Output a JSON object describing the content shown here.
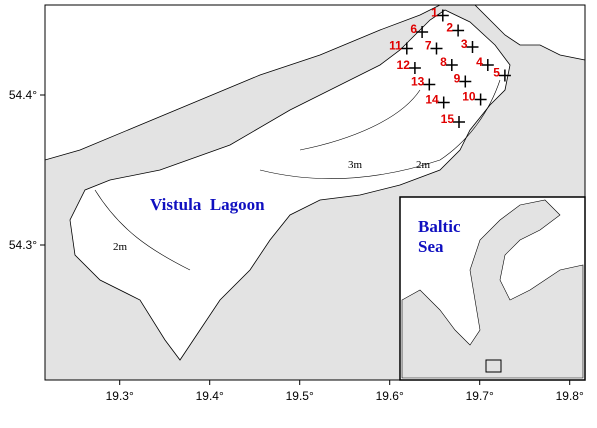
{
  "map": {
    "xlim": [
      19.217,
      19.817
    ],
    "ylim": [
      54.21,
      54.46
    ],
    "xticks": [
      {
        "value": 19.3,
        "label": "19.3°"
      },
      {
        "value": 19.4,
        "label": "19.4°"
      },
      {
        "value": 19.5,
        "label": "19.5°"
      },
      {
        "value": 19.6,
        "label": "19.6°"
      },
      {
        "value": 19.7,
        "label": "19.7°"
      },
      {
        "value": 19.8,
        "label": "19.8°"
      }
    ],
    "yticks": [
      {
        "value": 54.3,
        "label": "54.3°"
      },
      {
        "value": 54.4,
        "label": "54.4°"
      }
    ],
    "stations": [
      {
        "label": "1",
        "lon": 19.659,
        "lat": 54.453
      },
      {
        "label": "2",
        "lon": 19.676,
        "lat": 54.443
      },
      {
        "label": "3",
        "lon": 19.692,
        "lat": 54.432
      },
      {
        "label": "4",
        "lon": 19.709,
        "lat": 54.42
      },
      {
        "label": "5",
        "lon": 19.728,
        "lat": 54.413
      },
      {
        "label": "6",
        "lon": 19.636,
        "lat": 54.442
      },
      {
        "label": "7",
        "lon": 19.652,
        "lat": 54.431
      },
      {
        "label": "8",
        "lon": 19.669,
        "lat": 54.42
      },
      {
        "label": "9",
        "lon": 19.684,
        "lat": 54.409
      },
      {
        "label": "10",
        "lon": 19.701,
        "lat": 54.397
      },
      {
        "label": "11",
        "lon": 19.619,
        "lat": 54.431
      },
      {
        "label": "12",
        "lon": 19.628,
        "lat": 54.418
      },
      {
        "label": "13",
        "lon": 19.644,
        "lat": 54.407
      },
      {
        "label": "14",
        "lon": 19.66,
        "lat": 54.395
      },
      {
        "label": "15",
        "lon": 19.677,
        "lat": 54.382
      }
    ],
    "lagoon_label": "Vistula  Lagoon",
    "inset_label": [
      "Baltic",
      "Sea"
    ],
    "depth_labels": [
      "2m",
      "3m",
      "2m"
    ]
  }
}
